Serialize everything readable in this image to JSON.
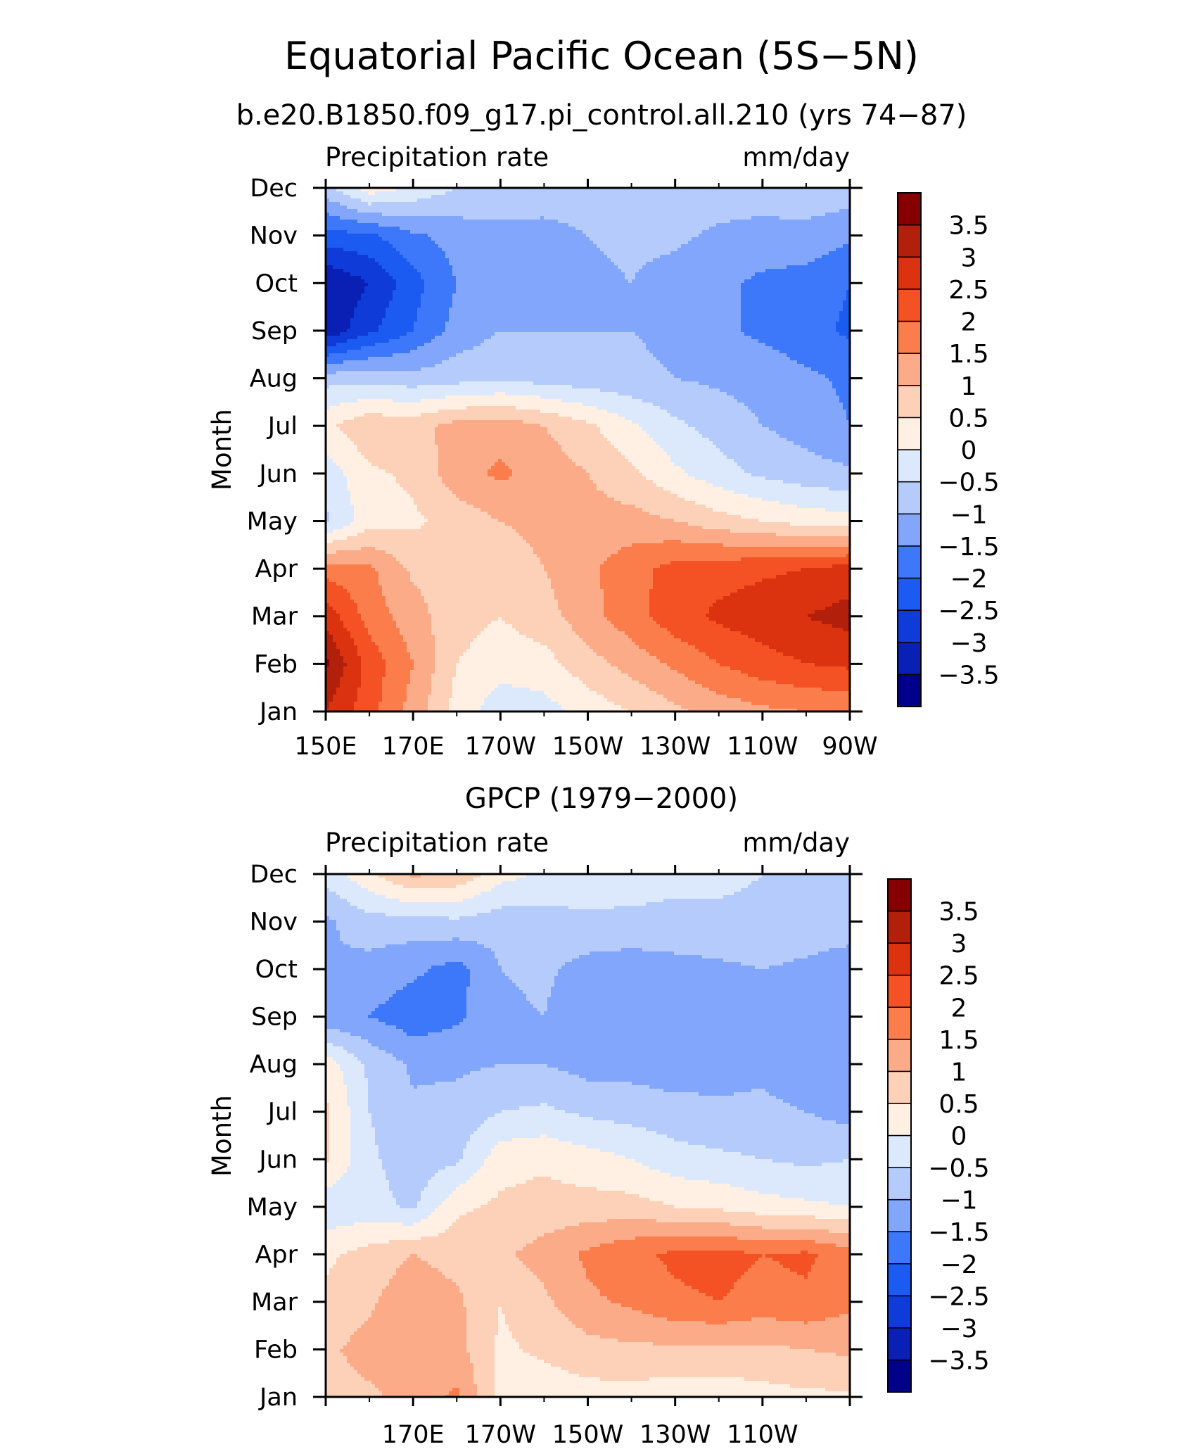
{
  "figure": {
    "title": "Equatorial Pacific Ocean (5S−5N)",
    "subtitle": "b.e20.B1850.f09_g17.pi_control.all.210 (yrs 74−87)"
  },
  "chart_data": [
    {
      "type": "heatmap",
      "panel_title": "",
      "left_label": "Precipitation rate",
      "right_label": "mm/day",
      "ylabel": "Month",
      "x_tick_labels": [
        "150E",
        "170E",
        "170W",
        "150W",
        "130W",
        "110W",
        "90W"
      ],
      "y_tick_labels": [
        "Jan",
        "Feb",
        "Mar",
        "Apr",
        "May",
        "Jun",
        "Jul",
        "Aug",
        "Sep",
        "Oct",
        "Nov",
        "Dec"
      ],
      "xlim": [
        150,
        270
      ],
      "ylim": [
        1,
        12
      ],
      "x": [
        150,
        160,
        170,
        180,
        190,
        200,
        210,
        220,
        230,
        240,
        250,
        260,
        270
      ],
      "y": [
        1,
        2,
        3,
        4,
        5,
        6,
        7,
        8,
        9,
        10,
        11,
        12
      ],
      "z": [
        [
          3.0,
          2.2,
          1.3,
          0.3,
          -0.3,
          -0.2,
          0.2,
          0.5,
          0.9,
          1.2,
          1.4,
          1.5,
          1.6
        ],
        [
          3.6,
          2.3,
          1.5,
          0.5,
          0.2,
          0.3,
          0.8,
          1.2,
          1.6,
          2.0,
          2.3,
          2.5,
          2.6
        ],
        [
          2.8,
          1.8,
          1.2,
          0.7,
          0.5,
          0.8,
          1.3,
          1.8,
          2.3,
          2.6,
          2.8,
          3.0,
          3.2
        ],
        [
          1.8,
          1.6,
          0.9,
          0.8,
          0.8,
          1.0,
          1.4,
          1.8,
          2.2,
          2.3,
          2.4,
          2.5,
          2.7
        ],
        [
          -0.6,
          0.3,
          0.4,
          0.7,
          1.0,
          1.1,
          1.2,
          1.2,
          1.0,
          0.7,
          0.5,
          0.3,
          0.2
        ],
        [
          -0.3,
          0.4,
          0.6,
          1.3,
          1.6,
          1.3,
          1.0,
          0.6,
          0.1,
          -0.3,
          -0.6,
          -0.8,
          -0.9
        ],
        [
          0.4,
          0.9,
          0.8,
          1.2,
          1.3,
          1.0,
          0.6,
          0.1,
          -0.4,
          -0.7,
          -1.0,
          -1.2,
          -1.5
        ],
        [
          -0.7,
          -0.7,
          -0.8,
          -0.7,
          -0.6,
          -0.7,
          -0.8,
          -0.9,
          -1.0,
          -1.1,
          -1.2,
          -1.4,
          -1.6
        ],
        [
          -3.4,
          -2.6,
          -2.0,
          -1.3,
          -1.0,
          -1.0,
          -1.0,
          -1.0,
          -1.1,
          -1.4,
          -1.6,
          -1.8,
          -2.1
        ],
        [
          -3.5,
          -3.0,
          -2.2,
          -1.5,
          -1.2,
          -1.2,
          -1.1,
          -1.0,
          -1.2,
          -1.4,
          -1.6,
          -1.7,
          -2.0
        ],
        [
          -2.2,
          -2.1,
          -1.6,
          -1.3,
          -1.2,
          -1.3,
          -1.0,
          -0.9,
          -0.9,
          -1.1,
          -1.2,
          -1.2,
          -1.4
        ],
        [
          -0.7,
          0.3,
          -0.1,
          -0.5,
          -0.6,
          -0.5,
          -0.5,
          -0.6,
          -0.7,
          -0.7,
          -0.7,
          -0.6,
          -0.7
        ]
      ]
    },
    {
      "type": "heatmap",
      "panel_title": "GPCP (1979−2000)",
      "left_label": "Precipitation rate",
      "right_label": "mm/day",
      "ylabel": "Month",
      "x_tick_labels": [
        "170E",
        "170W",
        "150W",
        "130W",
        "110W"
      ],
      "y_tick_labels": [
        "Jan",
        "Feb",
        "Mar",
        "Apr",
        "May",
        "Jun",
        "Jul",
        "Aug",
        "Sep",
        "Oct",
        "Nov",
        "Dec"
      ],
      "xlim": [
        150,
        270
      ],
      "ylim": [
        1,
        12
      ],
      "x": [
        150,
        160,
        170,
        180,
        190,
        200,
        210,
        220,
        230,
        240,
        250,
        260,
        270
      ],
      "y": [
        1,
        2,
        3,
        4,
        5,
        6,
        7,
        8,
        9,
        10,
        11,
        12
      ],
      "z": [
        [
          0.8,
          0.9,
          1.2,
          1.6,
          0.3,
          0.2,
          0.3,
          0.3,
          0.2,
          0.2,
          0.3,
          0.4,
          0.4
        ],
        [
          0.9,
          1.2,
          1.4,
          1.2,
          0.4,
          0.6,
          0.8,
          0.9,
          0.9,
          0.9,
          0.9,
          1.0,
          1.1
        ],
        [
          0.6,
          0.9,
          1.4,
          1.1,
          0.5,
          0.9,
          1.4,
          1.6,
          1.9,
          2.0,
          1.8,
          1.9,
          1.6
        ],
        [
          0.4,
          0.7,
          1.0,
          0.8,
          0.9,
          1.2,
          1.6,
          1.9,
          2.1,
          2.2,
          2.0,
          2.1,
          1.7
        ],
        [
          -0.4,
          -0.3,
          -0.6,
          0.4,
          0.6,
          0.7,
          0.7,
          0.7,
          0.5,
          0.4,
          0.2,
          0.1,
          0.0
        ],
        [
          0.6,
          -0.4,
          -0.8,
          -0.6,
          0.3,
          0.4,
          0.2,
          0.0,
          -0.3,
          -0.4,
          -0.5,
          -0.6,
          -0.5
        ],
        [
          0.6,
          -0.5,
          -0.9,
          -0.8,
          -0.5,
          -0.4,
          -0.6,
          -0.7,
          -0.8,
          -0.9,
          -0.9,
          -1.0,
          -1.2
        ],
        [
          0.3,
          -0.6,
          -1.1,
          -1.1,
          -1.0,
          -1.0,
          -1.2,
          -1.2,
          -1.3,
          -1.2,
          -1.1,
          -1.3,
          -1.5
        ],
        [
          -1.4,
          -1.5,
          -1.8,
          -1.6,
          -1.1,
          -1.0,
          -1.4,
          -1.4,
          -1.3,
          -1.4,
          -1.2,
          -1.3,
          -1.4
        ],
        [
          -1.0,
          -1.2,
          -1.4,
          -1.7,
          -1.0,
          -0.9,
          -1.2,
          -1.3,
          -1.2,
          -1.1,
          -1.0,
          -1.1,
          -1.3
        ],
        [
          -1.1,
          -0.7,
          -0.7,
          -0.6,
          -0.8,
          -0.7,
          -0.6,
          -0.6,
          -0.6,
          -0.6,
          -0.6,
          -0.7,
          -0.7
        ],
        [
          -0.3,
          0.4,
          1.1,
          0.9,
          0.2,
          -0.1,
          -0.2,
          -0.3,
          -0.4,
          -0.4,
          -0.5,
          -0.5,
          -0.5
        ]
      ]
    }
  ],
  "colorbar": {
    "levels": [
      -3.5,
      -3,
      -2.5,
      -2,
      -1.5,
      -1,
      -0.5,
      0,
      0.5,
      1,
      1.5,
      2,
      2.5,
      3,
      3.5
    ],
    "labels": [
      "3.5",
      "3",
      "2.5",
      "2",
      "1.5",
      "1",
      "0.5",
      "0",
      "−0.5",
      "−1",
      "−1.5",
      "−2",
      "−2.5",
      "−3",
      "−3.5"
    ],
    "colors": [
      "#00008b",
      "#0a20b4",
      "#0f3bd9",
      "#1b5bf2",
      "#3c78f9",
      "#82a6fb",
      "#b5cbfb",
      "#dce9fd",
      "#fff0e3",
      "#fdd0b8",
      "#fcab89",
      "#fb7d4b",
      "#f45124",
      "#db3310",
      "#b21f0b",
      "#870000"
    ]
  }
}
